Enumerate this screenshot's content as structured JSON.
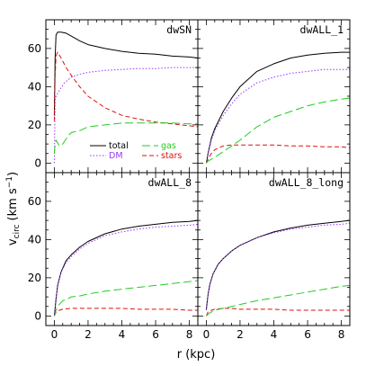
{
  "figure": {
    "ylabel_main": "v",
    "ylabel_sub": "circ",
    "ylabel_units": "(km s",
    "ylabel_exp": "−1",
    "ylabel_close": ")",
    "xlabel": "r (kpc)"
  },
  "legend": [
    {
      "key": "total",
      "label": "total",
      "color": "#000000",
      "dash": ""
    },
    {
      "key": "gas",
      "label": "gas",
      "color": "#22cc22",
      "dash": "9,4"
    },
    {
      "key": "dm",
      "label": "DM",
      "color": "#9933ff",
      "dash": "1.5,2"
    },
    {
      "key": "stars",
      "label": "stars",
      "color": "#dd1111",
      "dash": "5,3"
    }
  ],
  "colors": {
    "total": "#000000",
    "dm": "#9933ff",
    "gas": "#22cc22",
    "stars": "#dd1111"
  },
  "chart_data": [
    {
      "type": "line",
      "title": "dwSN",
      "xlim": [
        -0.5,
        8.5
      ],
      "ylim": [
        -5,
        75
      ],
      "xticks": [
        0,
        2,
        4,
        6,
        8
      ],
      "yticks": [
        0,
        20,
        40,
        60
      ],
      "series": [
        {
          "name": "total",
          "x": [
            0.0,
            0.05,
            0.1,
            0.2,
            0.4,
            0.7,
            1.0,
            1.5,
            2,
            3,
            4,
            5,
            6,
            7,
            8,
            8.5
          ],
          "y": [
            25,
            55,
            67,
            68.5,
            68.5,
            68,
            66.5,
            64,
            62,
            60,
            58.5,
            57.5,
            57,
            56,
            55.5,
            55
          ]
        },
        {
          "name": "DM",
          "x": [
            0.0,
            0.05,
            0.1,
            0.3,
            0.6,
            1.0,
            1.5,
            2,
            3,
            4,
            5,
            6,
            7,
            8,
            8.5
          ],
          "y": [
            0,
            33,
            35,
            38,
            42,
            45,
            46.5,
            47.5,
            48.5,
            49,
            49.5,
            49.5,
            50,
            50,
            50
          ]
        },
        {
          "name": "stars",
          "x": [
            0.0,
            0.05,
            0.1,
            0.2,
            0.4,
            0.7,
            1.0,
            1.5,
            2,
            3,
            4,
            5,
            6,
            7,
            8,
            8.5
          ],
          "y": [
            22,
            45,
            56,
            58,
            55,
            50,
            46,
            40,
            35,
            29,
            25,
            23,
            21.5,
            20.5,
            19.5,
            19
          ]
        },
        {
          "name": "gas",
          "x": [
            0.0,
            0.05,
            0.1,
            0.3,
            0.5,
            0.8,
            1.0,
            1.5,
            2,
            3,
            4,
            5,
            6,
            7,
            8,
            8.5
          ],
          "y": [
            5,
            10,
            12,
            9,
            10,
            14,
            16,
            17,
            19,
            20,
            21,
            21,
            21,
            21,
            20.5,
            20.5
          ]
        }
      ]
    },
    {
      "type": "line",
      "title": "dwALL_1",
      "xlim": [
        -0.5,
        8.5
      ],
      "ylim": [
        -5,
        75
      ],
      "xticks": [
        0,
        2,
        4,
        6,
        8
      ],
      "yticks": [
        0,
        20,
        40,
        60
      ],
      "series": [
        {
          "name": "total",
          "x": [
            0.0,
            0.05,
            0.1,
            0.3,
            0.5,
            1.0,
            1.5,
            2,
            3,
            4,
            5,
            6,
            7,
            8,
            8.5
          ],
          "y": [
            0,
            2,
            5,
            13,
            18,
            27,
            34,
            40,
            48,
            52,
            55,
            56.5,
            57.5,
            58,
            58
          ]
        },
        {
          "name": "DM",
          "x": [
            0.0,
            0.05,
            0.1,
            0.3,
            0.5,
            1.0,
            1.5,
            2,
            3,
            4,
            5,
            6,
            7,
            8,
            8.5
          ],
          "y": [
            0,
            2,
            5,
            12,
            17,
            25,
            31,
            36,
            42,
            45,
            47,
            48,
            49,
            49,
            49
          ]
        },
        {
          "name": "stars",
          "x": [
            0.0,
            0.05,
            0.1,
            0.3,
            0.5,
            1.0,
            1.5,
            2,
            3,
            4,
            5,
            6,
            7,
            8,
            8.5
          ],
          "y": [
            0,
            1,
            2,
            5,
            7,
            9,
            9.5,
            9.5,
            9.5,
            9.5,
            9,
            9,
            8.5,
            8.5,
            8
          ]
        },
        {
          "name": "gas",
          "x": [
            0.0,
            0.05,
            0.1,
            0.3,
            0.5,
            1.0,
            1.5,
            2,
            3,
            4,
            5,
            6,
            7,
            8,
            8.5
          ],
          "y": [
            0,
            0.5,
            1,
            2,
            3,
            6,
            9,
            12,
            19,
            24,
            27,
            30,
            32,
            33.5,
            34
          ]
        }
      ]
    },
    {
      "type": "line",
      "title": "dwALL_8",
      "xlim": [
        -0.5,
        8.5
      ],
      "ylim": [
        -5,
        75
      ],
      "xticks": [
        0,
        2,
        4,
        6,
        8
      ],
      "yticks": [
        0,
        20,
        40,
        60
      ],
      "series": [
        {
          "name": "total",
          "x": [
            0.0,
            0.05,
            0.1,
            0.2,
            0.4,
            0.7,
            1.0,
            1.5,
            2,
            3,
            4,
            5,
            6,
            7,
            8,
            8.5
          ],
          "y": [
            0,
            4,
            9,
            16,
            23,
            29,
            32,
            36,
            39,
            43,
            45.5,
            47,
            48,
            49,
            49.5,
            50
          ]
        },
        {
          "name": "DM",
          "x": [
            0.0,
            0.05,
            0.1,
            0.2,
            0.4,
            0.7,
            1.0,
            1.5,
            2,
            3,
            4,
            5,
            6,
            7,
            8,
            8.5
          ],
          "y": [
            0,
            4,
            9,
            16,
            23,
            28,
            31,
            35,
            38,
            42,
            44,
            45.5,
            46.5,
            47,
            47.5,
            48
          ]
        },
        {
          "name": "stars",
          "x": [
            0.0,
            0.05,
            0.1,
            0.3,
            0.5,
            1.0,
            1.5,
            2,
            3,
            4,
            5,
            6,
            7,
            8,
            8.5
          ],
          "y": [
            0,
            1,
            2,
            3,
            3.5,
            4,
            4,
            4,
            4,
            4,
            3.5,
            3.5,
            3.5,
            3,
            3
          ]
        },
        {
          "name": "gas",
          "x": [
            0.0,
            0.05,
            0.1,
            0.3,
            0.5,
            0.8,
            1.0,
            1.5,
            2,
            3,
            4,
            5,
            6,
            7,
            8,
            8.5
          ],
          "y": [
            0,
            1,
            3,
            6,
            8,
            9,
            10,
            10.5,
            11.5,
            13,
            14,
            15,
            16,
            17,
            18,
            18.5
          ]
        }
      ]
    },
    {
      "type": "line",
      "title": "dwALL_8_long",
      "xlim": [
        -0.5,
        8.5
      ],
      "ylim": [
        -5,
        75
      ],
      "xticks": [
        0,
        2,
        4,
        6,
        8
      ],
      "yticks": [
        0,
        20,
        40,
        60
      ],
      "series": [
        {
          "name": "total",
          "x": [
            0.0,
            0.05,
            0.1,
            0.2,
            0.4,
            0.7,
            1.0,
            1.5,
            2,
            3,
            4,
            5,
            6,
            7,
            8,
            8.5
          ],
          "y": [
            3,
            7,
            11,
            16,
            22,
            27,
            30,
            34,
            37,
            41,
            44,
            46,
            47.5,
            48.5,
            49.5,
            50
          ]
        },
        {
          "name": "DM",
          "x": [
            0.0,
            0.05,
            0.1,
            0.2,
            0.4,
            0.7,
            1.0,
            1.5,
            2,
            3,
            4,
            5,
            6,
            7,
            8,
            8.5
          ],
          "y": [
            3,
            7,
            11,
            16,
            22,
            27,
            30,
            34,
            37,
            41,
            43.5,
            45.5,
            46.5,
            47.5,
            48,
            48.5
          ]
        },
        {
          "name": "stars",
          "x": [
            0.0,
            0.05,
            0.1,
            0.3,
            0.5,
            1.0,
            1.5,
            2,
            3,
            4,
            5,
            6,
            7,
            8,
            8.5
          ],
          "y": [
            0,
            1,
            2,
            3,
            3.5,
            4,
            4,
            3.5,
            3.5,
            3.5,
            3,
            3,
            3,
            3,
            3
          ]
        },
        {
          "name": "gas",
          "x": [
            0.0,
            0.05,
            0.1,
            0.3,
            0.5,
            1.0,
            1.5,
            2,
            3,
            4,
            5,
            6,
            7,
            8,
            8.5
          ],
          "y": [
            0,
            0.5,
            1,
            2,
            3,
            4,
            5,
            6,
            8,
            9.5,
            11,
            12.5,
            14,
            15.5,
            16
          ]
        }
      ]
    }
  ]
}
